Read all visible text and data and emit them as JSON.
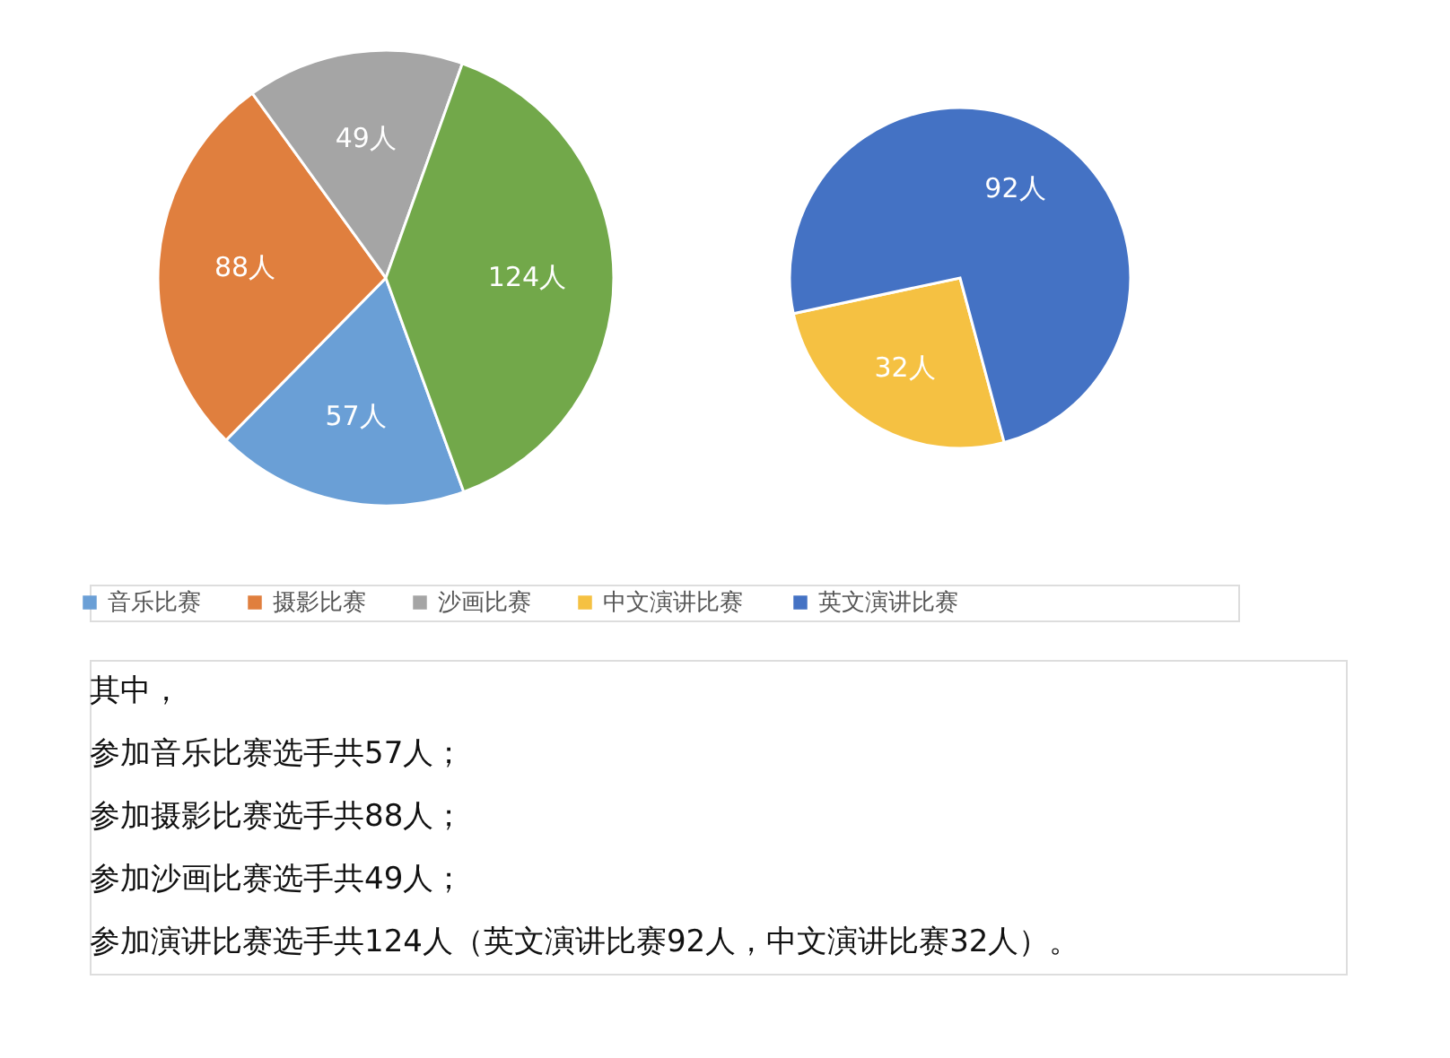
{
  "chart_data": [
    {
      "type": "pie",
      "categories": [
        "音乐比赛",
        "摄影比赛",
        "沙画比赛",
        null
      ],
      "values": [
        57,
        88,
        49,
        124
      ],
      "colors": [
        "#6a9fd6",
        "#e07f3e",
        "#a5a5a5",
        "#72a84a"
      ],
      "value_labels": [
        "57人",
        "88人",
        "49人",
        "124人"
      ],
      "legend": "bottom",
      "annotations": [
        "其中，",
        "参加音乐比赛选手共57人；",
        "参加摄影比赛选手共88人；",
        "参加沙画比赛选手共49人；",
        "参加演讲比赛选手共124人（英文演讲比赛92人，中文演讲比赛32人）。"
      ]
    },
    {
      "type": "pie",
      "categories": [
        "中文演讲比赛",
        "英文演讲比赛"
      ],
      "values": [
        32,
        92
      ],
      "colors": [
        "#f5c142",
        "#4472c4"
      ],
      "value_labels": [
        "32人",
        "92人"
      ],
      "legend": "bottom"
    }
  ]
}
